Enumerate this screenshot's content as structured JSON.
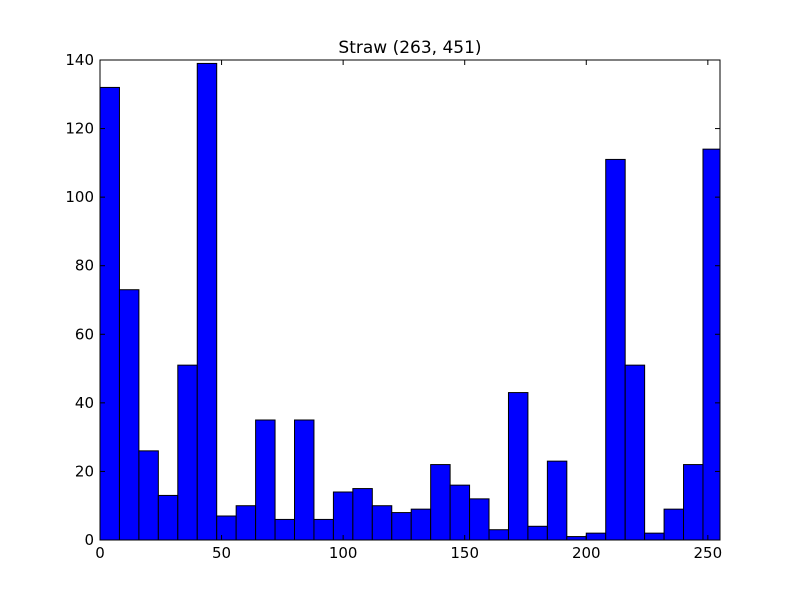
{
  "chart_data": {
    "type": "bar",
    "title": "Straw (263, 451)",
    "xlabel": "",
    "ylabel": "",
    "xlim": [
      0,
      255
    ],
    "ylim": [
      0,
      140
    ],
    "grid": false,
    "legend": "none",
    "bar_color": "#0000ff",
    "edge_color": "#000000",
    "x_ticks": [
      0,
      50,
      100,
      150,
      200,
      250
    ],
    "y_ticks": [
      0,
      20,
      40,
      60,
      80,
      100,
      120,
      140
    ],
    "bin_edges": [
      0,
      8,
      16,
      24,
      32,
      40,
      48,
      56,
      64,
      72,
      80,
      88,
      96,
      104,
      112,
      120,
      128,
      136,
      144,
      152,
      160,
      168,
      176,
      184,
      192,
      200,
      208,
      216,
      224,
      232,
      240,
      248,
      255
    ],
    "values": [
      132,
      73,
      26,
      13,
      51,
      139,
      7,
      10,
      35,
      6,
      35,
      6,
      14,
      15,
      10,
      8,
      9,
      22,
      16,
      12,
      3,
      43,
      4,
      23,
      1,
      2,
      111,
      51,
      2,
      9,
      22,
      114
    ]
  }
}
